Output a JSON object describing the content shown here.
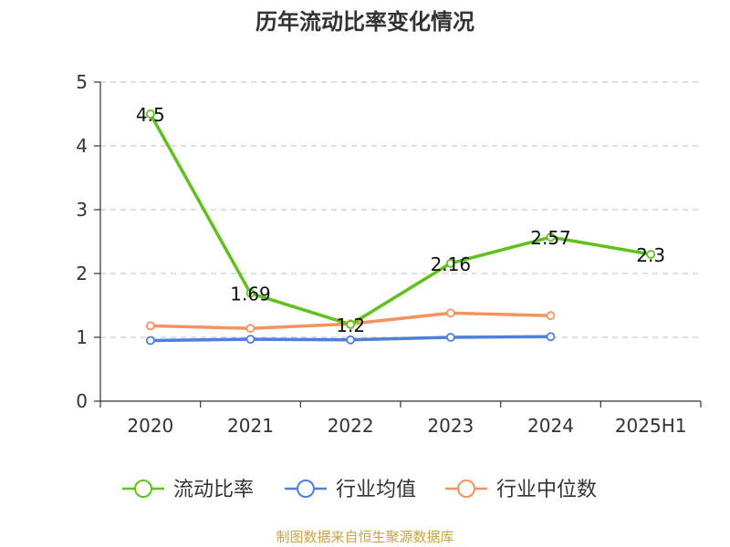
{
  "chart_data": {
    "type": "line",
    "title": "历年流动比率变化情况",
    "categories": [
      "2020",
      "2021",
      "2022",
      "2023",
      "2024",
      "2025H1"
    ],
    "ylim": [
      0,
      5
    ],
    "yticks": [
      0,
      1,
      2,
      3,
      4,
      5
    ],
    "grid": true,
    "legend_position": "bottom",
    "series": [
      {
        "name": "流动比率",
        "color": "#5ec218",
        "values": [
          4.5,
          1.69,
          1.2,
          2.16,
          2.57,
          2.3
        ],
        "data_labels": [
          "4.5",
          "1.69",
          "1.2",
          "2.16",
          "2.57",
          "2.3"
        ]
      },
      {
        "name": "行业均值",
        "color": "#4f7fdc",
        "values": [
          0.95,
          0.97,
          0.96,
          1.0,
          1.01,
          null
        ]
      },
      {
        "name": "行业中位数",
        "color": "#f4935e",
        "values": [
          1.18,
          1.14,
          1.21,
          1.38,
          1.34,
          null
        ]
      }
    ]
  },
  "source_note": "制图数据来自恒生聚源数据库"
}
